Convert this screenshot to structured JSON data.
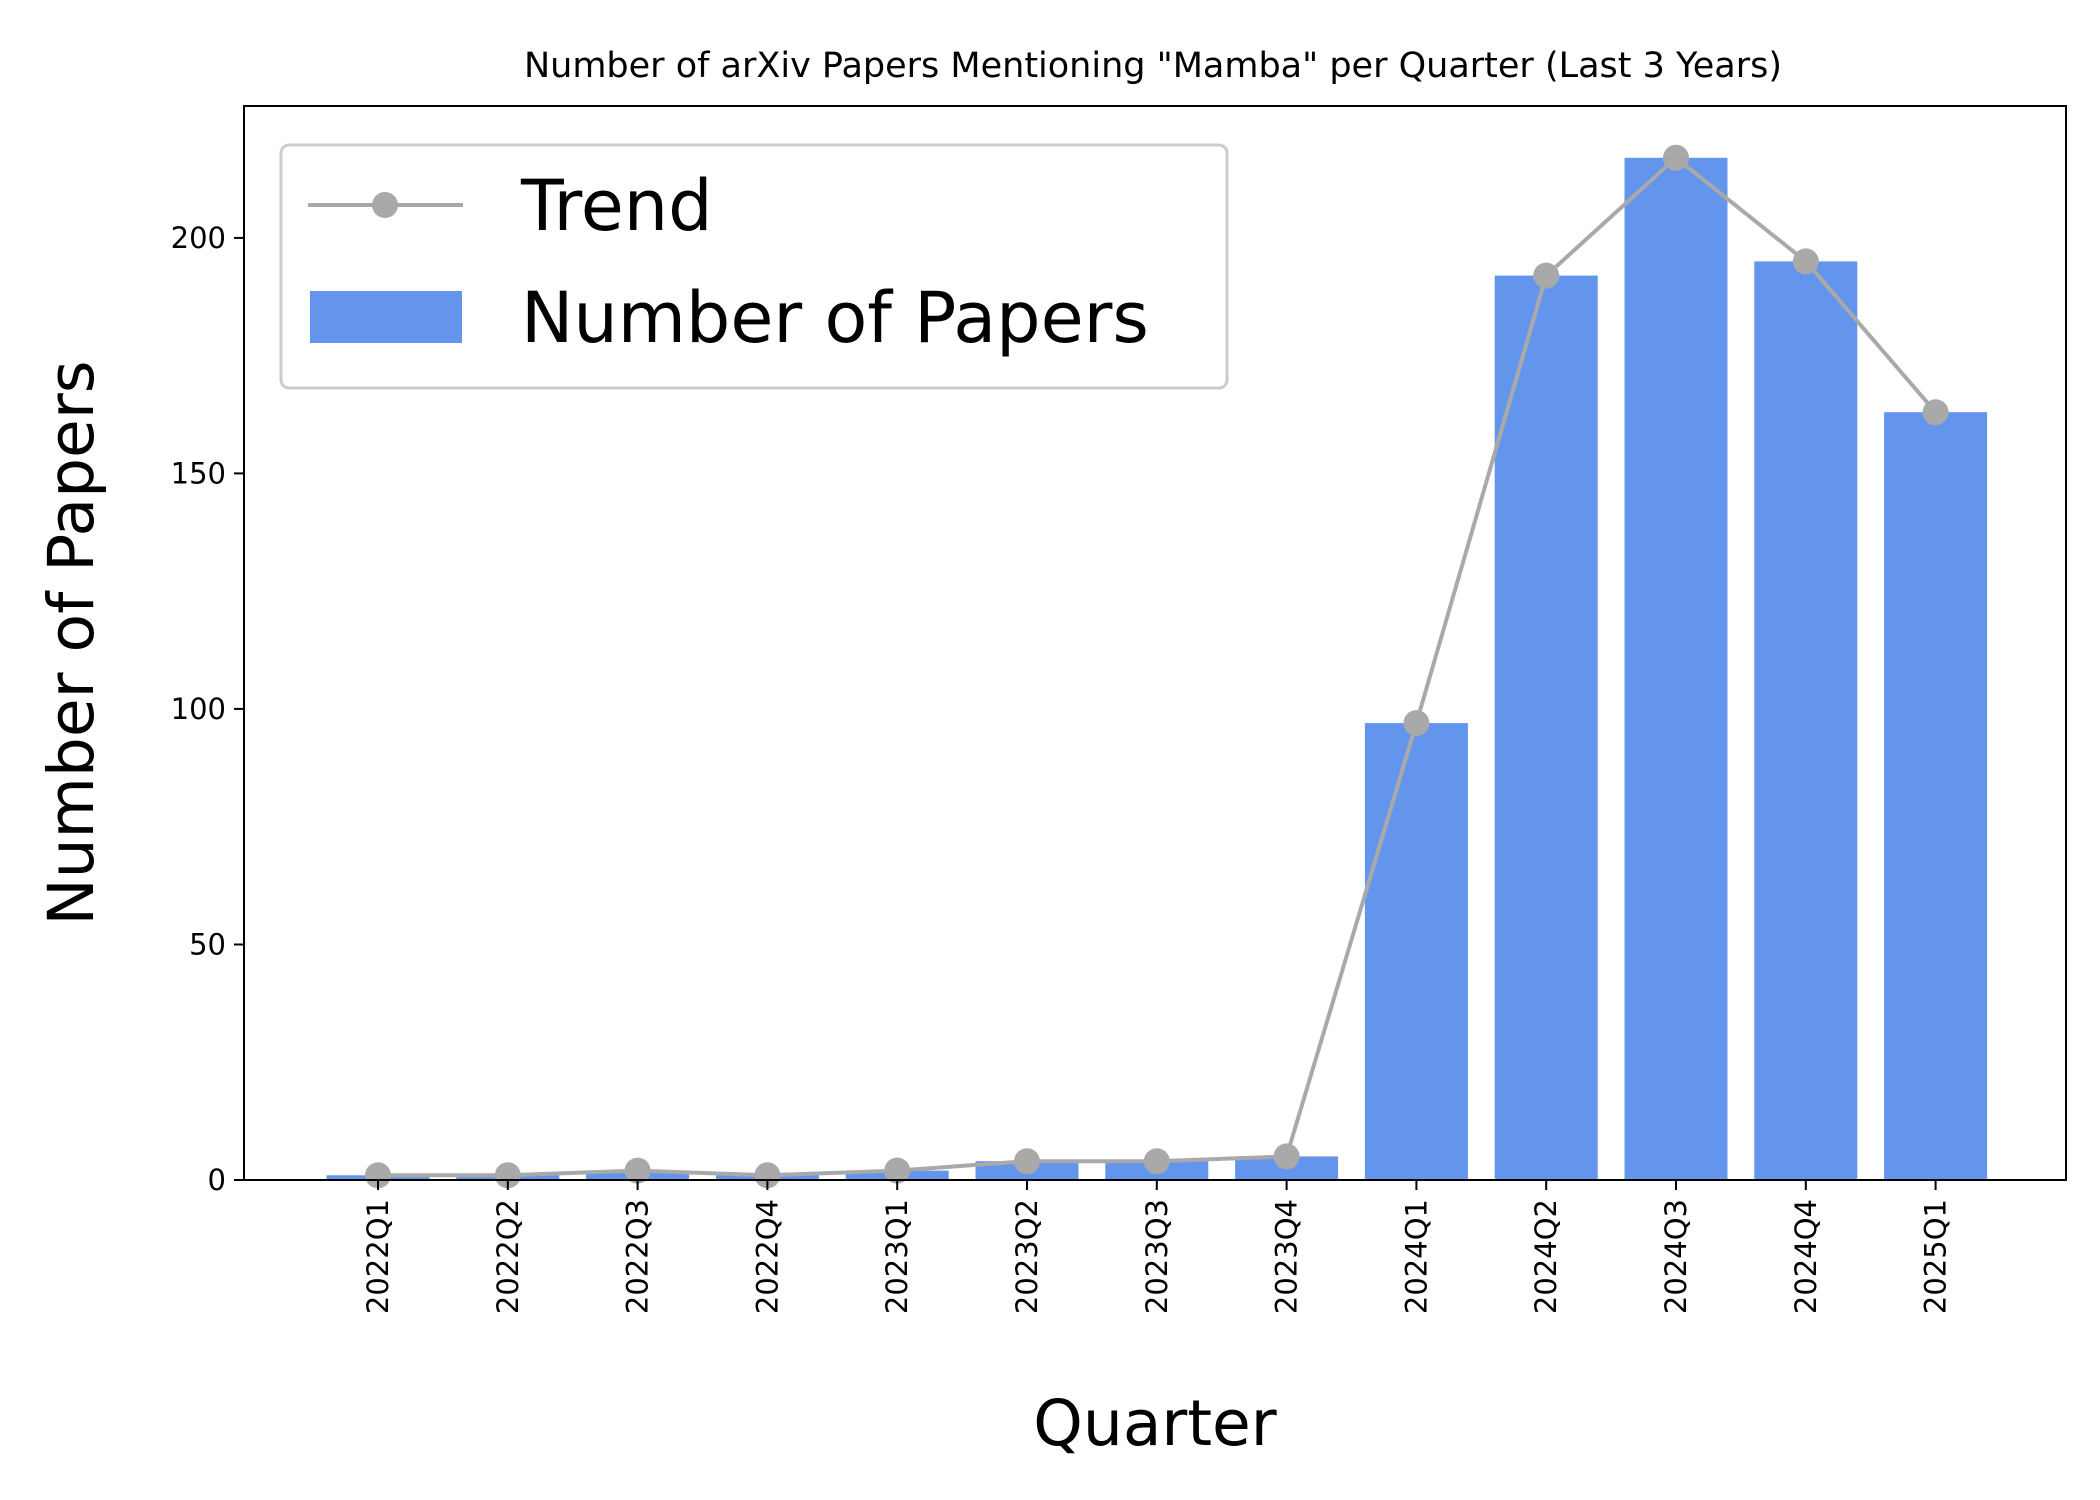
{
  "chart_data": {
    "type": "bar",
    "title": "Number of arXiv Papers Mentioning \"Mamba\" per Quarter (Last 3 Years)",
    "xlabel": "Quarter",
    "ylabel": "Number of Papers",
    "categories": [
      "2022Q1",
      "2022Q2",
      "2022Q3",
      "2022Q4",
      "2023Q1",
      "2023Q2",
      "2023Q3",
      "2023Q4",
      "2024Q1",
      "2024Q2",
      "2024Q3",
      "2024Q4",
      "2025Q1"
    ],
    "series": [
      {
        "name": "Number of Papers",
        "kind": "bar",
        "color": "#6495ED",
        "values": [
          1,
          1,
          2,
          1,
          2,
          4,
          4,
          5,
          97,
          192,
          217,
          195,
          163
        ]
      },
      {
        "name": "Trend",
        "kind": "line",
        "color": "#A9A9A9",
        "values": [
          1,
          1,
          2,
          1,
          2,
          4,
          4,
          5,
          97,
          192,
          217,
          195,
          163
        ]
      }
    ],
    "ylim": [
      0,
      228
    ],
    "yticks": [
      0,
      50,
      100,
      150,
      200
    ],
    "grid": false,
    "legend": "top-left",
    "x_tick_rotation": 90
  }
}
